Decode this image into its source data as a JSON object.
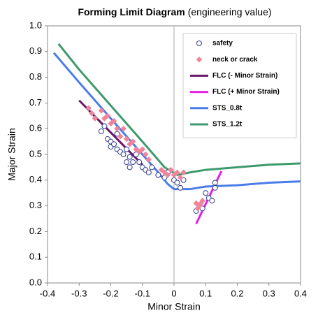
{
  "chart_data": {
    "type": "scatter",
    "title": "Forming Limit Diagram",
    "title_note": "(engineering value)",
    "x_label": "Minor Strain",
    "y_label": "Major Strain",
    "xlim": [
      -0.4,
      0.4
    ],
    "ylim": [
      0,
      1
    ],
    "xticks": [
      -0.4,
      -0.3,
      -0.2,
      -0.1,
      0,
      0.1,
      0.2,
      0.3,
      0.4
    ],
    "yticks": [
      {
        "value": 0,
        "label": "0.0"
      },
      0.1,
      0.2,
      0.3,
      0.4,
      0.5,
      0.6,
      0.7,
      0.8,
      0.9,
      {
        "value": 1,
        "label": "1.0"
      }
    ],
    "vlines": [
      0
    ],
    "grid": false,
    "legend": "upper right",
    "series": [
      {
        "name": "safety",
        "color": "#2e3b8f",
        "marker": "circle",
        "x": [
          -0.23,
          -0.22,
          -0.21,
          -0.2,
          -0.2,
          -0.19,
          -0.18,
          -0.18,
          -0.17,
          -0.16,
          -0.15,
          -0.15,
          -0.14,
          -0.14,
          -0.13,
          -0.12,
          -0.11,
          -0.1,
          -0.09,
          -0.08,
          -0.07,
          -0.05,
          -0.03,
          -0.02,
          0.0,
          0.01,
          0.02,
          0.03,
          0.07,
          0.08,
          0.09,
          0.1,
          0.11,
          0.12,
          0.13,
          0.13
        ],
        "values": [
          0.59,
          0.61,
          0.56,
          0.55,
          0.53,
          0.54,
          0.58,
          0.52,
          0.51,
          0.5,
          0.47,
          0.52,
          0.49,
          0.45,
          0.47,
          0.5,
          0.47,
          0.45,
          0.44,
          0.43,
          0.45,
          0.42,
          0.41,
          0.43,
          0.4,
          0.39,
          0.37,
          0.4,
          0.28,
          0.3,
          0.29,
          0.35,
          0.33,
          0.32,
          0.37,
          0.39
        ]
      },
      {
        "name": "neck or crack",
        "color": "#f0849a",
        "marker": "diamond",
        "x": [
          -0.27,
          -0.26,
          -0.25,
          -0.23,
          -0.22,
          -0.21,
          -0.2,
          -0.19,
          -0.18,
          -0.17,
          -0.16,
          -0.15,
          -0.14,
          -0.13,
          -0.12,
          -0.11,
          -0.1,
          -0.09,
          -0.08,
          -0.04,
          -0.03,
          -0.02,
          -0.01,
          0.0,
          0.01,
          0.02,
          0.03,
          0.07,
          0.08,
          0.09,
          0.075,
          0.085
        ],
        "values": [
          0.68,
          0.66,
          0.64,
          0.67,
          0.64,
          0.65,
          0.62,
          0.63,
          0.6,
          0.57,
          0.6,
          0.56,
          0.54,
          0.55,
          0.52,
          0.51,
          0.52,
          0.5,
          0.48,
          0.44,
          0.43,
          0.42,
          0.44,
          0.42,
          0.43,
          0.41,
          0.43,
          0.31,
          0.3,
          0.32,
          0.29,
          0.31
        ]
      },
      {
        "name": "FLC (- Minor Strain)",
        "color": "#6b1a6b",
        "line": true,
        "x": [
          -0.3,
          -0.1
        ],
        "values": [
          0.71,
          0.46
        ]
      },
      {
        "name": "FLC (+ Minor Strain)",
        "color": "#e61ee6",
        "line": true,
        "x": [
          0.07,
          0.15
        ],
        "values": [
          0.23,
          0.435
        ]
      },
      {
        "name": "STS_0.8t",
        "color": "#4a7de8",
        "line": true,
        "x": [
          -0.38,
          -0.3,
          -0.2,
          -0.1,
          -0.05,
          -0.02,
          0.0,
          0.05,
          0.1,
          0.2,
          0.3,
          0.4
        ],
        "values": [
          0.895,
          0.78,
          0.64,
          0.5,
          0.43,
          0.385,
          0.365,
          0.365,
          0.375,
          0.38,
          0.39,
          0.395
        ]
      },
      {
        "name": "STS_1.2t",
        "color": "#3d9a6c",
        "line": true,
        "x": [
          -0.365,
          -0.3,
          -0.2,
          -0.1,
          -0.03,
          0.01,
          0.05,
          0.1,
          0.2,
          0.3,
          0.4
        ],
        "values": [
          0.93,
          0.83,
          0.69,
          0.55,
          0.45,
          0.42,
          0.43,
          0.44,
          0.45,
          0.46,
          0.465
        ]
      }
    ]
  }
}
